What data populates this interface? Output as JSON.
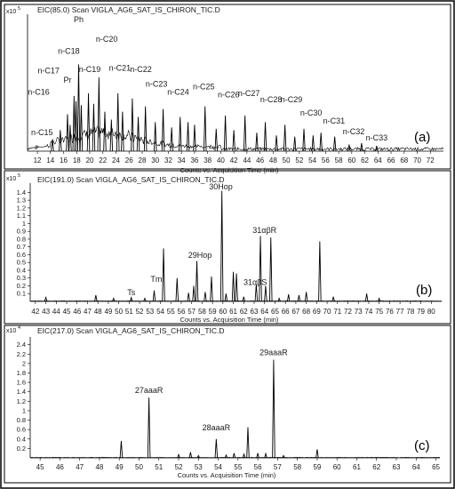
{
  "chart_data": [
    {
      "type": "line",
      "title": "EIC(85.0) Scan VIGLA_AG6_SAT_IS_CHIRON_TIC.D",
      "y_scale_label": "x10",
      "y_exponent": "5",
      "panel_label": "(a)",
      "xlabel": "Counts vs. Acquisition Time (min)",
      "xlim": [
        10.5,
        74
      ],
      "ylim": [
        0,
        1
      ],
      "x_ticks": [
        12,
        14,
        16,
        18,
        20,
        22,
        24,
        26,
        28,
        30,
        32,
        34,
        36,
        38,
        40,
        42,
        44,
        46,
        48,
        50,
        52,
        54,
        56,
        58,
        60,
        62,
        64,
        66,
        68,
        70,
        72
      ],
      "peaks": [
        {
          "x": 14.3,
          "y": 0.09
        },
        {
          "x": 15.5,
          "y": 0.16
        },
        {
          "x": 16.6,
          "y": 0.28
        },
        {
          "x": 17.0,
          "y": 0.2
        },
        {
          "x": 17.6,
          "y": 0.42
        },
        {
          "x": 17.9,
          "y": 0.38
        },
        {
          "x": 18.3,
          "y": 0.66
        },
        {
          "x": 18.7,
          "y": 0.35
        },
        {
          "x": 19.8,
          "y": 0.44
        },
        {
          "x": 20.6,
          "y": 0.36
        },
        {
          "x": 21.4,
          "y": 0.56
        },
        {
          "x": 22.3,
          "y": 0.3
        },
        {
          "x": 23.3,
          "y": 0.24
        },
        {
          "x": 24.3,
          "y": 0.44
        },
        {
          "x": 25.0,
          "y": 0.3
        },
        {
          "x": 26.5,
          "y": 0.4
        },
        {
          "x": 27.4,
          "y": 0.26
        },
        {
          "x": 28.5,
          "y": 0.34
        },
        {
          "x": 30.0,
          "y": 0.22
        },
        {
          "x": 31.2,
          "y": 0.32
        },
        {
          "x": 32.5,
          "y": 0.18
        },
        {
          "x": 33.8,
          "y": 0.26
        },
        {
          "x": 35.0,
          "y": 0.22
        },
        {
          "x": 36.0,
          "y": 0.2
        },
        {
          "x": 37.6,
          "y": 0.34
        },
        {
          "x": 39.3,
          "y": 0.17
        },
        {
          "x": 40.7,
          "y": 0.27
        },
        {
          "x": 42.0,
          "y": 0.16
        },
        {
          "x": 43.7,
          "y": 0.27
        },
        {
          "x": 45.5,
          "y": 0.14
        },
        {
          "x": 46.8,
          "y": 0.22
        },
        {
          "x": 48.5,
          "y": 0.12
        },
        {
          "x": 49.8,
          "y": 0.2
        },
        {
          "x": 51.3,
          "y": 0.11
        },
        {
          "x": 52.7,
          "y": 0.17
        },
        {
          "x": 54.1,
          "y": 0.12
        },
        {
          "x": 55.3,
          "y": 0.14
        },
        {
          "x": 57.4,
          "y": 0.11
        },
        {
          "x": 59.6,
          "y": 0.05
        },
        {
          "x": 61.5,
          "y": 0.06
        },
        {
          "x": 63.8,
          "y": 0.04
        }
      ],
      "annotations": [
        {
          "label": "Ph",
          "x": 18.3,
          "y": 0.98
        },
        {
          "label": "n-C20",
          "x": 22.6,
          "y": 0.83
        },
        {
          "label": "n-C18",
          "x": 16.8,
          "y": 0.74
        },
        {
          "label": "n-C17",
          "x": 13.7,
          "y": 0.59
        },
        {
          "label": "n-C19",
          "x": 20.0,
          "y": 0.6
        },
        {
          "label": "n-C21",
          "x": 24.6,
          "y": 0.61
        },
        {
          "label": "n-C22",
          "x": 27.8,
          "y": 0.6
        },
        {
          "label": "Pr",
          "x": 16.6,
          "y": 0.52
        },
        {
          "label": "n-C16",
          "x": 12.2,
          "y": 0.43
        },
        {
          "label": "n-C23",
          "x": 30.2,
          "y": 0.49
        },
        {
          "label": "n-C24",
          "x": 33.5,
          "y": 0.43
        },
        {
          "label": "n-C25",
          "x": 37.4,
          "y": 0.47
        },
        {
          "label": "n-C26",
          "x": 41.2,
          "y": 0.41
        },
        {
          "label": "n-C27",
          "x": 44.3,
          "y": 0.42
        },
        {
          "label": "n-C28",
          "x": 47.7,
          "y": 0.37
        },
        {
          "label": "n-C29",
          "x": 50.8,
          "y": 0.37
        },
        {
          "label": "n-C30",
          "x": 53.8,
          "y": 0.27
        },
        {
          "label": "n-C31",
          "x": 57.3,
          "y": 0.21
        },
        {
          "label": "n-C32",
          "x": 60.3,
          "y": 0.13
        },
        {
          "label": "n-C33",
          "x": 63.8,
          "y": 0.08
        },
        {
          "label": "n-C15",
          "x": 12.7,
          "y": 0.12
        }
      ]
    },
    {
      "type": "line",
      "title": "EIC(191.0) Scan VIGLA_AG6_SAT_IS_CHIRON_TIC.D",
      "y_scale_label": "x10",
      "y_exponent": "5",
      "panel_label": "(b)",
      "xlabel": "Counts vs. Acquisition Time (min)",
      "xlim": [
        41.5,
        81
      ],
      "ylim": [
        0,
        1.45
      ],
      "x_ticks": [
        42,
        43,
        44,
        45,
        46,
        47,
        48,
        49,
        50,
        51,
        52,
        53,
        54,
        55,
        56,
        57,
        58,
        59,
        60,
        61,
        62,
        63,
        64,
        65,
        66,
        67,
        68,
        69,
        70,
        71,
        72,
        73,
        74,
        75,
        76,
        77,
        78,
        79,
        80
      ],
      "y_ticks": [
        0.1,
        0.2,
        0.3,
        0.4,
        0.5,
        0.6,
        0.7,
        0.8,
        0.9,
        1,
        1.1,
        1.2,
        1.3,
        1.4
      ],
      "peaks": [
        {
          "x": 43.0,
          "y": 0.05
        },
        {
          "x": 47.8,
          "y": 0.08
        },
        {
          "x": 49.5,
          "y": 0.04
        },
        {
          "x": 51.2,
          "y": 0.05
        },
        {
          "x": 52.5,
          "y": 0.04
        },
        {
          "x": 53.4,
          "y": 0.14
        },
        {
          "x": 54.3,
          "y": 0.68
        },
        {
          "x": 55.6,
          "y": 0.3
        },
        {
          "x": 56.7,
          "y": 0.11
        },
        {
          "x": 57.2,
          "y": 0.2
        },
        {
          "x": 57.5,
          "y": 0.52
        },
        {
          "x": 58.3,
          "y": 0.12
        },
        {
          "x": 58.9,
          "y": 0.32
        },
        {
          "x": 59.9,
          "y": 1.42
        },
        {
          "x": 60.3,
          "y": 0.1
        },
        {
          "x": 61.0,
          "y": 0.38
        },
        {
          "x": 61.3,
          "y": 0.36
        },
        {
          "x": 62.0,
          "y": 0.06
        },
        {
          "x": 63.2,
          "y": 0.22
        },
        {
          "x": 63.6,
          "y": 0.84
        },
        {
          "x": 64.1,
          "y": 0.2
        },
        {
          "x": 64.6,
          "y": 0.82
        },
        {
          "x": 65.4,
          "y": 0.04
        },
        {
          "x": 66.3,
          "y": 0.09
        },
        {
          "x": 67.3,
          "y": 0.08
        },
        {
          "x": 68.0,
          "y": 0.12
        },
        {
          "x": 69.3,
          "y": 0.77
        },
        {
          "x": 70.6,
          "y": 0.06
        },
        {
          "x": 73.8,
          "y": 0.1
        },
        {
          "x": 75.0,
          "y": 0.04
        }
      ],
      "annotations": [
        {
          "label": "30Hop",
          "x": 59.8,
          "y": 1.44
        },
        {
          "label": "31αβR",
          "x": 64.0,
          "y": 0.88
        },
        {
          "label": "29Hop",
          "x": 57.8,
          "y": 0.56
        },
        {
          "label": "Tm",
          "x": 53.6,
          "y": 0.25
        },
        {
          "label": "31αβS",
          "x": 63.1,
          "y": 0.21
        },
        {
          "label": "Ts",
          "x": 51.2,
          "y": 0.08
        }
      ]
    },
    {
      "type": "line",
      "title": "EIC(217.0) Scan VIGLA_AG6_SAT_IS_CHIRON_TIC.D",
      "y_scale_label": "x10",
      "y_exponent": "4",
      "panel_label": "(c)",
      "xlabel": "Counts vs. Acquisition Time (min)",
      "xlim": [
        44.5,
        65.2
      ],
      "ylim": [
        0,
        2.45
      ],
      "x_ticks": [
        45,
        46,
        47,
        48,
        49,
        50,
        51,
        52,
        53,
        54,
        55,
        56,
        57,
        58,
        59,
        60,
        61,
        62,
        63,
        64,
        65
      ],
      "y_ticks": [
        0.2,
        0.4,
        0.6,
        0.8,
        1,
        1.2,
        1.4,
        1.6,
        1.8,
        2,
        2.2,
        2.4
      ],
      "peaks": [
        {
          "x": 49.1,
          "y": 0.36
        },
        {
          "x": 50.5,
          "y": 1.28
        },
        {
          "x": 52.0,
          "y": 0.07
        },
        {
          "x": 52.6,
          "y": 0.12
        },
        {
          "x": 53.0,
          "y": 0.05
        },
        {
          "x": 53.9,
          "y": 0.4
        },
        {
          "x": 54.4,
          "y": 0.06
        },
        {
          "x": 54.8,
          "y": 0.1
        },
        {
          "x": 55.3,
          "y": 0.08
        },
        {
          "x": 55.5,
          "y": 0.65
        },
        {
          "x": 56.0,
          "y": 0.1
        },
        {
          "x": 56.4,
          "y": 0.09
        },
        {
          "x": 56.8,
          "y": 2.08
        },
        {
          "x": 57.3,
          "y": 0.05
        },
        {
          "x": 59.0,
          "y": 0.18
        }
      ],
      "annotations": [
        {
          "label": "27aaaR",
          "x": 50.5,
          "y": 1.38
        },
        {
          "label": "29aaaR",
          "x": 56.8,
          "y": 2.18
        },
        {
          "label": "28aaaR",
          "x": 53.9,
          "y": 0.58
        }
      ]
    }
  ]
}
